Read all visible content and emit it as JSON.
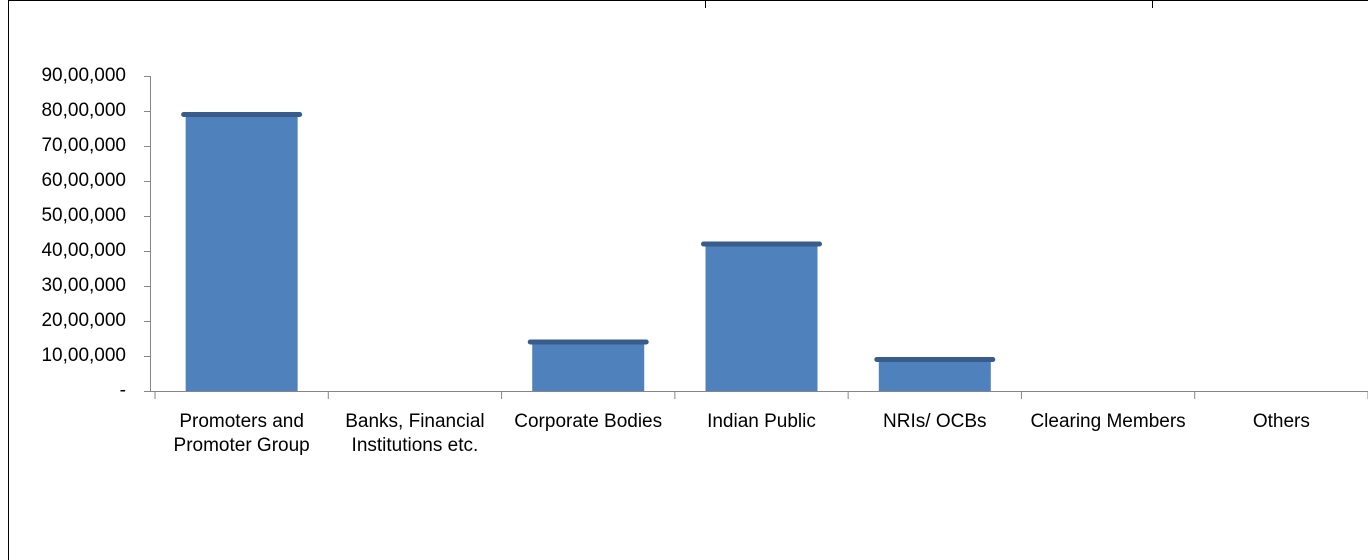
{
  "chart_data": {
    "type": "bar",
    "categories": [
      "Promoters and Promoter Group",
      "Banks, Financial Institutions etc.",
      "Corporate Bodies",
      "Indian Public",
      "NRIs/ OCBs",
      "Clearing Members",
      "Others"
    ],
    "values": [
      7900000,
      0,
      1400000,
      4200000,
      900000,
      0,
      0
    ],
    "color": "#4f81bd",
    "ylim": [
      0,
      9000000
    ],
    "yticks": [
      {
        "value": 0,
        "label": "-"
      },
      {
        "value": 1000000,
        "label": "10,00,000"
      },
      {
        "value": 2000000,
        "label": "20,00,000"
      },
      {
        "value": 3000000,
        "label": "30,00,000"
      },
      {
        "value": 4000000,
        "label": "40,00,000"
      },
      {
        "value": 5000000,
        "label": "50,00,000"
      },
      {
        "value": 6000000,
        "label": "60,00,000"
      },
      {
        "value": 7000000,
        "label": "70,00,000"
      },
      {
        "value": 8000000,
        "label": "80,00,000"
      },
      {
        "value": 9000000,
        "label": "90,00,000"
      }
    ],
    "grid": false
  }
}
